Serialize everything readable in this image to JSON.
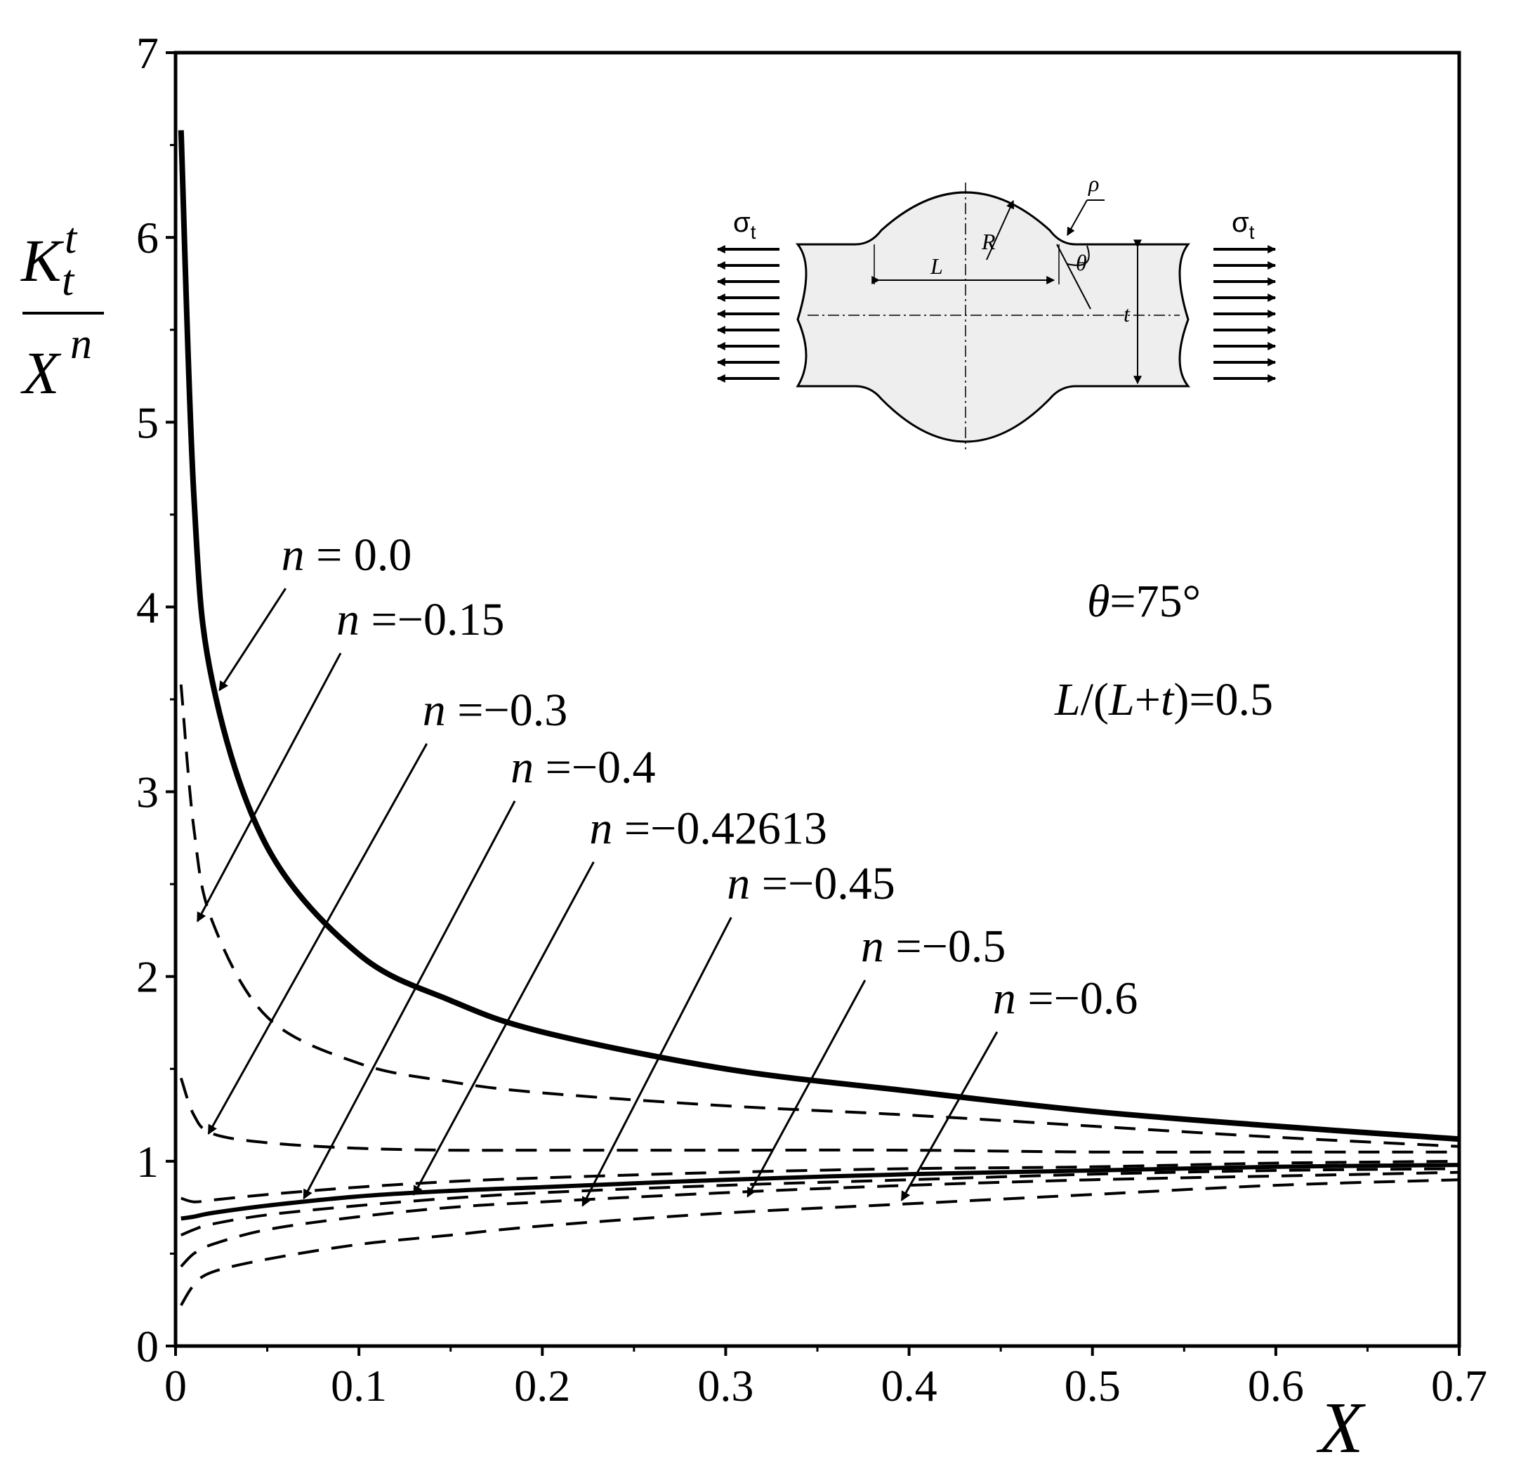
{
  "chart_data": {
    "type": "line",
    "xlabel": "X",
    "ylabel": {
      "num_base": "K",
      "num_sub": "t",
      "num_sup": "t",
      "den_base": "X",
      "den_sup": "n"
    },
    "xlim": [
      0,
      0.7
    ],
    "ylim": [
      0,
      7
    ],
    "x_ticks": [
      "0",
      "0.1",
      "0.2",
      "0.3",
      "0.4",
      "0.5",
      "0.6",
      "0.7"
    ],
    "y_ticks": [
      "0",
      "1",
      "2",
      "3",
      "4",
      "5",
      "6",
      "7"
    ],
    "grid": false,
    "x": [
      0.003,
      0.01,
      0.02,
      0.05,
      0.1,
      0.15,
      0.2,
      0.3,
      0.4,
      0.5,
      0.6,
      0.7
    ],
    "series": [
      {
        "name": "n = 0.0",
        "style": "solid-thick",
        "values": [
          6.58,
          4.6,
          3.6,
          2.7,
          2.12,
          1.87,
          1.7,
          1.5,
          1.38,
          1.27,
          1.19,
          1.12
        ]
      },
      {
        "name": "n =−0.15",
        "style": "dashed",
        "values": [
          3.58,
          2.8,
          2.3,
          1.78,
          1.53,
          1.43,
          1.37,
          1.3,
          1.25,
          1.19,
          1.13,
          1.08
        ]
      },
      {
        "name": "n =−0.3",
        "style": "dashed",
        "values": [
          1.45,
          1.25,
          1.15,
          1.1,
          1.07,
          1.06,
          1.06,
          1.06,
          1.06,
          1.05,
          1.05,
          1.05
        ]
      },
      {
        "name": "n =−0.4",
        "style": "dashed",
        "values": [
          0.8,
          0.78,
          0.79,
          0.82,
          0.86,
          0.89,
          0.91,
          0.94,
          0.96,
          0.97,
          0.99,
          1.0
        ]
      },
      {
        "name": "n =−0.42613",
        "style": "solid",
        "values": [
          0.69,
          0.7,
          0.72,
          0.76,
          0.81,
          0.84,
          0.86,
          0.9,
          0.93,
          0.95,
          0.97,
          0.98
        ]
      },
      {
        "name": "n =−0.45",
        "style": "dashed",
        "values": [
          0.6,
          0.63,
          0.66,
          0.71,
          0.76,
          0.8,
          0.83,
          0.87,
          0.9,
          0.93,
          0.95,
          0.96
        ]
      },
      {
        "name": "n =−0.5",
        "style": "dashed",
        "values": [
          0.43,
          0.5,
          0.55,
          0.63,
          0.7,
          0.75,
          0.78,
          0.83,
          0.87,
          0.9,
          0.92,
          0.94
        ]
      },
      {
        "name": "n =−0.6",
        "style": "dashed",
        "values": [
          0.22,
          0.33,
          0.4,
          0.47,
          0.55,
          0.6,
          0.65,
          0.72,
          0.77,
          0.82,
          0.87,
          0.9
        ]
      }
    ],
    "annotations": [
      {
        "text": "n = 0.0",
        "text_at": [
          0.06,
          4.2
        ],
        "arrow_from": [
          0.06,
          4.1
        ],
        "arrow_to": [
          0.024,
          3.55
        ]
      },
      {
        "text": "n =−0.15",
        "text_at": [
          0.09,
          3.85
        ],
        "arrow_from": [
          0.09,
          3.75
        ],
        "arrow_to": [
          0.012,
          2.3
        ]
      },
      {
        "text": "n =−0.3",
        "text_at": [
          0.137,
          3.36
        ],
        "arrow_from": [
          0.137,
          3.26
        ],
        "arrow_to": [
          0.018,
          1.15
        ]
      },
      {
        "text": "n =−0.4",
        "text_at": [
          0.185,
          3.05
        ],
        "arrow_from": [
          0.185,
          2.95
        ],
        "arrow_to": [
          0.07,
          0.8
        ]
      },
      {
        "text": "n =−0.42613",
        "text_at": [
          0.228,
          2.72
        ],
        "arrow_from": [
          0.228,
          2.62
        ],
        "arrow_to": [
          0.13,
          0.82
        ]
      },
      {
        "text": "n =−0.45",
        "text_at": [
          0.303,
          2.42
        ],
        "arrow_from": [
          0.303,
          2.32
        ],
        "arrow_to": [
          0.222,
          0.76
        ]
      },
      {
        "text": "n =−0.5",
        "text_at": [
          0.376,
          2.08
        ],
        "arrow_from": [
          0.376,
          1.98
        ],
        "arrow_to": [
          0.312,
          0.81
        ]
      },
      {
        "text": "n =−0.6",
        "text_at": [
          0.448,
          1.8
        ],
        "arrow_from": [
          0.448,
          1.7
        ],
        "arrow_to": [
          0.396,
          0.79
        ]
      }
    ],
    "params": {
      "theta_symbol": "θ",
      "theta_value": "=75°",
      "ratio_parts": [
        "L",
        "/(",
        "L",
        "+",
        "t",
        ")=0.5"
      ]
    },
    "inset": {
      "labels": {
        "L": "L",
        "R": "R",
        "rho": "ρ",
        "theta": "θ",
        "t": "t"
      },
      "sigma_base": "σ",
      "sigma_sub": "t"
    }
  }
}
